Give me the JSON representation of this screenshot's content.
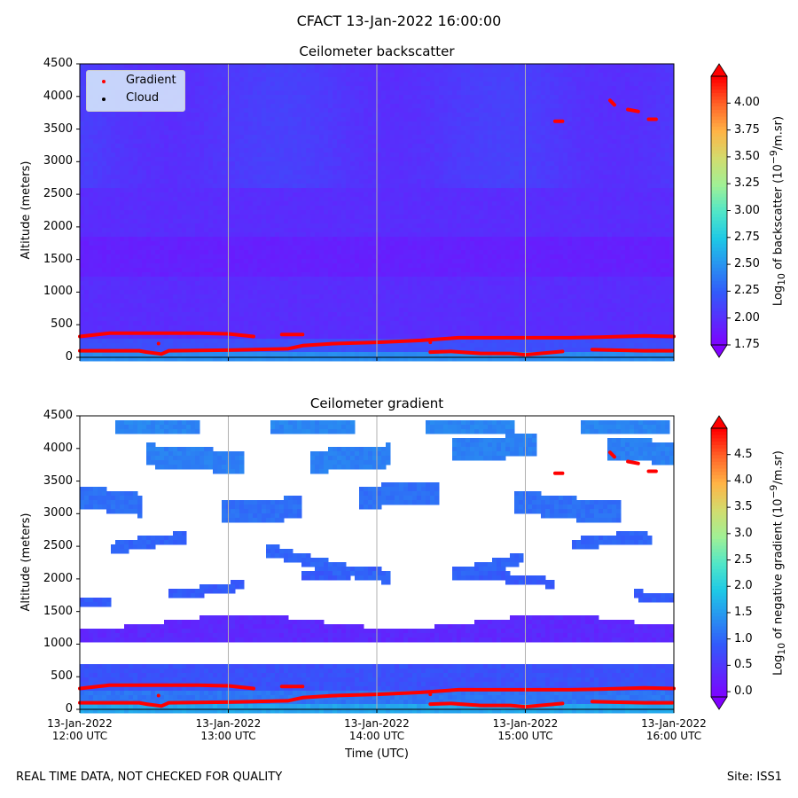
{
  "suptitle": "CFACT 13-Jan-2022 16:00:00",
  "footer_left": "REAL TIME DATA, NOT CHECKED FOR QUALITY",
  "footer_right": "Site: ISS1",
  "chart_data": [
    {
      "type": "heatmap",
      "title": "Ceilometer backscatter",
      "xlabel": "",
      "ylabel": "Altitude (meters)",
      "ylim": [
        0,
        4500
      ],
      "yticks": [
        "0",
        "500",
        "1000",
        "1500",
        "2000",
        "2500",
        "3000",
        "3500",
        "4000",
        "4500"
      ],
      "xlim_hours_utc": [
        12,
        16
      ],
      "colorbar": {
        "label_html": "Log<sub>10</sub> of backscatter (10<sup>−9</sup>/m.sr)",
        "range": [
          1.75,
          4.25
        ],
        "ticks": [
          "1.75",
          "2.00",
          "2.25",
          "2.50",
          "2.75",
          "3.00",
          "3.25",
          "3.50",
          "3.75",
          "4.00"
        ]
      },
      "legend": [
        {
          "label": "Gradient",
          "color": "#ff0000"
        },
        {
          "label": "Cloud",
          "color": "#000000"
        }
      ]
    },
    {
      "type": "heatmap",
      "title": "Ceilometer gradient",
      "xlabel": "Time (UTC)",
      "ylabel": "Altitude (meters)",
      "ylim": [
        0,
        4500
      ],
      "yticks": [
        "0",
        "500",
        "1000",
        "1500",
        "2000",
        "2500",
        "3000",
        "3500",
        "4000",
        "4500"
      ],
      "xticks": [
        {
          "date": "13-Jan-2022",
          "time": "12:00 UTC"
        },
        {
          "date": "13-Jan-2022",
          "time": "13:00 UTC"
        },
        {
          "date": "13-Jan-2022",
          "time": "14:00 UTC"
        },
        {
          "date": "13-Jan-2022",
          "time": "15:00 UTC"
        },
        {
          "date": "13-Jan-2022",
          "time": "16:00 UTC"
        }
      ],
      "colorbar": {
        "label_html": "Log<sub>10</sub> of negative gradient (10<sup>−9</sup>/m.sr)",
        "range": [
          -0.1,
          5.0
        ],
        "ticks": [
          "0.0",
          "0.5",
          "1.0",
          "1.5",
          "2.0",
          "2.5",
          "3.0",
          "3.5",
          "4.0",
          "4.5"
        ]
      }
    }
  ],
  "gradient_layers_m": {
    "lower": {
      "t": [
        12.0,
        12.4,
        12.45,
        12.55,
        12.6,
        13.0,
        13.4,
        13.5,
        13.7,
        14.0,
        14.3,
        14.55,
        14.7,
        15.0,
        15.3,
        15.5,
        15.8,
        16.0
      ],
      "alt": [
        100,
        100,
        80,
        50,
        100,
        110,
        130,
        180,
        210,
        230,
        260,
        300,
        300,
        300,
        300,
        310,
        330,
        320
      ]
    },
    "upper": {
      "t": [
        12.0,
        12.2,
        12.5,
        12.8,
        13.0,
        13.17
      ],
      "alt": [
        320,
        370,
        370,
        370,
        360,
        320
      ]
    },
    "upper2": {
      "t": [
        13.36,
        13.5
      ],
      "alt": [
        350,
        350
      ]
    },
    "surface": {
      "t": [
        14.36,
        14.5,
        14.7,
        14.9,
        15.0,
        15.25
      ],
      "alt": [
        80,
        90,
        60,
        60,
        40,
        90
      ]
    },
    "surface2": {
      "t": [
        15.45,
        15.6,
        15.8,
        15.99
      ],
      "alt": [
        120,
        110,
        100,
        100
      ]
    },
    "high": [
      {
        "t": [
          15.2,
          15.25
        ],
        "alt": [
          3620,
          3620
        ]
      },
      {
        "t": [
          15.57,
          15.6
        ],
        "alt": [
          3940,
          3870
        ]
      },
      {
        "t": [
          15.69,
          15.76
        ],
        "alt": [
          3800,
          3770
        ]
      },
      {
        "t": [
          15.83,
          15.88
        ],
        "alt": [
          3650,
          3650
        ]
      }
    ]
  }
}
